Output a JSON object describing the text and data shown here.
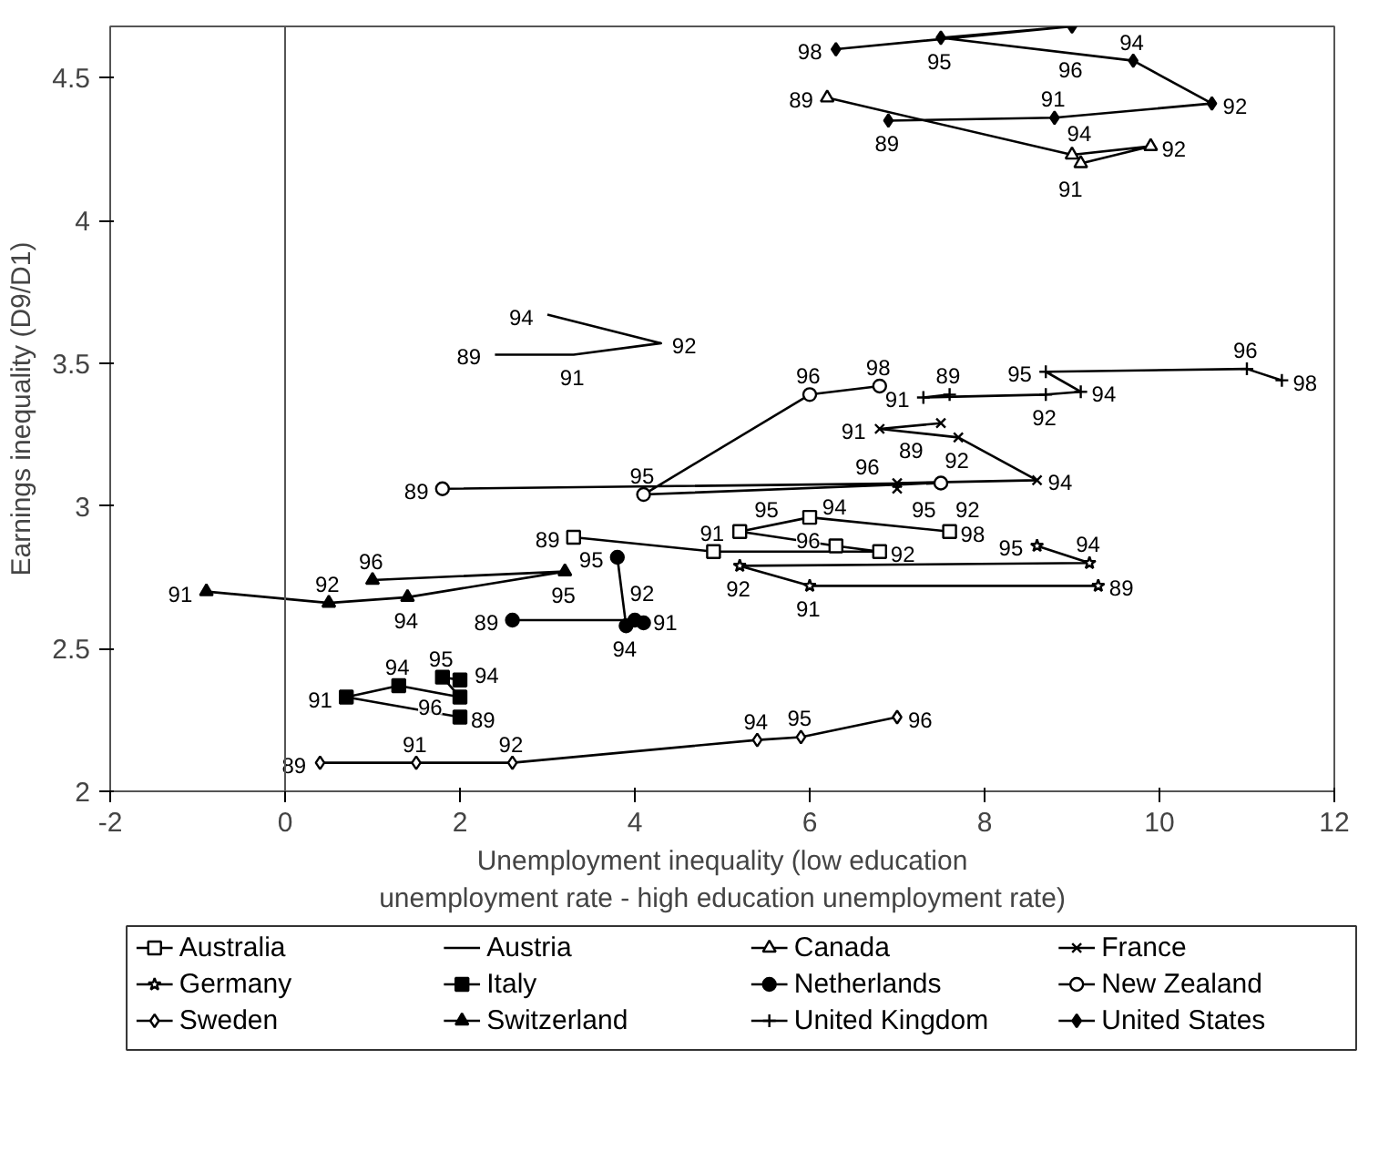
{
  "chart_data": {
    "type": "line",
    "xlabel": "Unemployment inequality (low education\nunemployment rate - high education unemployment rate)",
    "ylabel": "Earnings inequality (D9/D1)",
    "xlim": [
      -2,
      12
    ],
    "ylim": [
      2,
      4.68
    ],
    "xticks": [
      -2,
      0,
      2,
      4,
      6,
      8,
      10,
      12
    ],
    "yticks": [
      2,
      2.5,
      3,
      3.5,
      4,
      4.5
    ],
    "grid": false,
    "legend": "bottom",
    "ref_lines": [
      {
        "axis": "x",
        "value": 0,
        "label": null
      }
    ],
    "series": [
      {
        "name": "Australia",
        "color": "#000000",
        "marker": "square",
        "x": [
          3.3,
          4.9,
          6.8,
          6.3,
          5.2,
          6.0,
          7.6
        ],
        "values": [
          2.89,
          2.84,
          2.84,
          2.86,
          2.91,
          2.96,
          2.91
        ]
      },
      {
        "name": "Austria",
        "color": "#000000",
        "marker": "none",
        "x": [
          2.4,
          3.3,
          4.3,
          3.0
        ],
        "values": [
          3.53,
          3.53,
          3.57,
          3.67
        ]
      },
      {
        "name": "Canada",
        "color": "#000000",
        "marker": "triangle",
        "x": [
          6.2,
          9.0,
          9.9,
          9.1
        ],
        "values": [
          4.43,
          4.23,
          4.26,
          4.2
        ]
      },
      {
        "name": "France",
        "color": "#000000",
        "marker": "x",
        "x": [
          7.5,
          6.8,
          7.7,
          8.6,
          7.0,
          7.0
        ],
        "values": [
          3.29,
          3.27,
          3.24,
          3.09,
          3.08,
          3.06
        ]
      },
      {
        "name": "Germany",
        "color": "#000000",
        "marker": "star",
        "x": [
          9.3,
          6.0,
          5.2,
          9.2,
          8.6
        ],
        "values": [
          2.72,
          2.72,
          2.79,
          2.8,
          2.86
        ]
      },
      {
        "name": "Italy",
        "color": "#000000",
        "marker": "square_filled",
        "x": [
          2.0,
          0.7,
          1.3,
          2.0,
          1.8,
          2.0
        ],
        "values": [
          2.26,
          2.33,
          2.37,
          2.33,
          2.4,
          2.39
        ]
      },
      {
        "name": "Netherlands",
        "color": "#000000",
        "marker": "circle_filled",
        "x": [
          2.6,
          4.0,
          4.1,
          3.9,
          3.8
        ],
        "values": [
          2.6,
          2.6,
          2.59,
          2.58,
          2.82
        ]
      },
      {
        "name": "New Zealand",
        "color": "#000000",
        "marker": "circle",
        "x": [
          1.8,
          7.5,
          4.1,
          6.0,
          6.8
        ],
        "values": [
          3.06,
          3.08,
          3.04,
          3.39,
          3.42
        ]
      },
      {
        "name": "Sweden",
        "color": "#000000",
        "marker": "diamond",
        "x": [
          0.4,
          1.5,
          2.6,
          5.4,
          5.9,
          7.0
        ],
        "values": [
          2.1,
          2.1,
          2.1,
          2.18,
          2.19,
          2.26
        ]
      },
      {
        "name": "Switzerland",
        "color": "#000000",
        "marker": "triangle_filled",
        "x": [
          -0.9,
          0.5,
          1.4,
          3.2,
          1.0
        ],
        "values": [
          2.7,
          2.66,
          2.68,
          2.77,
          2.74
        ]
      },
      {
        "name": "United Kingdom",
        "color": "#000000",
        "marker": "cross",
        "x": [
          7.6,
          7.3,
          8.7,
          9.1,
          8.7,
          11.0,
          11.4
        ],
        "values": [
          3.39,
          3.38,
          3.39,
          3.4,
          3.47,
          3.48,
          3.44
        ]
      },
      {
        "name": "United States",
        "color": "#000000",
        "marker": "diamond_filled",
        "x": [
          6.9,
          8.8,
          10.6,
          9.7,
          7.5,
          9.0,
          6.3
        ],
        "values": [
          4.35,
          4.36,
          4.41,
          4.56,
          4.64,
          4.68,
          4.6
        ]
      }
    ],
    "annotations": [
      {
        "text": "89",
        "x": 3.3,
        "y": 2.89
      },
      {
        "text": "91",
        "x": 4.9,
        "y": 2.84
      },
      {
        "text": "92",
        "x": 6.8,
        "y": 2.84
      },
      {
        "text": "94",
        "x": 6.3,
        "y": 2.86
      },
      {
        "text": "95",
        "x": 5.2,
        "y": 2.91
      },
      {
        "text": "96",
        "x": 6.0,
        "y": 2.96
      },
      {
        "text": "98",
        "x": 7.6,
        "y": 2.91
      },
      {
        "text": "89",
        "x": 2.4,
        "y": 3.53
      },
      {
        "text": "91",
        "x": 3.3,
        "y": 3.53
      },
      {
        "text": "92",
        "x": 4.3,
        "y": 3.57
      },
      {
        "text": "94",
        "x": 3.0,
        "y": 3.67
      },
      {
        "text": "89",
        "x": 6.2,
        "y": 4.43
      },
      {
        "text": "91",
        "x": 9.0,
        "y": 4.23
      },
      {
        "text": "92",
        "x": 9.9,
        "y": 4.26
      },
      {
        "text": "94",
        "x": 9.1,
        "y": 4.2
      },
      {
        "text": "89",
        "x": 7.5,
        "y": 3.29
      },
      {
        "text": "91",
        "x": 6.8,
        "y": 3.27
      },
      {
        "text": "92",
        "x": 7.7,
        "y": 3.24
      },
      {
        "text": "94",
        "x": 8.6,
        "y": 3.09
      },
      {
        "text": "95",
        "x": 7.0,
        "y": 3.08
      },
      {
        "text": "96",
        "x": 7.0,
        "y": 3.06
      },
      {
        "text": "89",
        "x": 9.3,
        "y": 2.72
      },
      {
        "text": "91",
        "x": 6.0,
        "y": 2.72
      },
      {
        "text": "92",
        "x": 5.2,
        "y": 2.79
      },
      {
        "text": "94",
        "x": 9.2,
        "y": 2.8
      },
      {
        "text": "95",
        "x": 8.6,
        "y": 2.86
      },
      {
        "text": "89",
        "x": 2.0,
        "y": 2.26
      },
      {
        "text": "91",
        "x": 0.7,
        "y": 2.33
      },
      {
        "text": "94",
        "x": 1.3,
        "y": 2.37
      },
      {
        "text": "94",
        "x": 2.0,
        "y": 2.33
      },
      {
        "text": "95",
        "x": 1.8,
        "y": 2.4
      },
      {
        "text": "96",
        "x": 2.0,
        "y": 2.39
      },
      {
        "text": "89",
        "x": 2.6,
        "y": 2.6
      },
      {
        "text": "91",
        "x": 4.0,
        "y": 2.6
      },
      {
        "text": "92",
        "x": 4.1,
        "y": 2.59
      },
      {
        "text": "94",
        "x": 3.9,
        "y": 2.58
      },
      {
        "text": "95",
        "x": 3.8,
        "y": 2.82
      },
      {
        "text": "89",
        "x": 1.8,
        "y": 3.06
      },
      {
        "text": "92",
        "x": 7.5,
        "y": 3.08
      },
      {
        "text": "95",
        "x": 4.1,
        "y": 3.04
      },
      {
        "text": "96",
        "x": 6.0,
        "y": 3.39
      },
      {
        "text": "98",
        "x": 6.8,
        "y": 3.42
      },
      {
        "text": "89",
        "x": 0.4,
        "y": 2.1
      },
      {
        "text": "91",
        "x": 1.5,
        "y": 2.1
      },
      {
        "text": "92",
        "x": 2.6,
        "y": 2.1
      },
      {
        "text": "94",
        "x": 5.4,
        "y": 2.18
      },
      {
        "text": "95",
        "x": 5.9,
        "y": 2.19
      },
      {
        "text": "96",
        "x": 7.0,
        "y": 2.26
      },
      {
        "text": "91",
        "x": -0.9,
        "y": 2.7
      },
      {
        "text": "92",
        "x": 0.5,
        "y": 2.66
      },
      {
        "text": "94",
        "x": 1.4,
        "y": 2.68
      },
      {
        "text": "95",
        "x": 3.2,
        "y": 2.77
      },
      {
        "text": "96",
        "x": 1.0,
        "y": 2.74
      },
      {
        "text": "89",
        "x": 7.6,
        "y": 3.39
      },
      {
        "text": "91",
        "x": 7.3,
        "y": 3.38
      },
      {
        "text": "92",
        "x": 8.7,
        "y": 3.39
      },
      {
        "text": "94",
        "x": 9.1,
        "y": 3.4
      },
      {
        "text": "95",
        "x": 8.7,
        "y": 3.47
      },
      {
        "text": "96",
        "x": 11.0,
        "y": 3.48
      },
      {
        "text": "98",
        "x": 11.4,
        "y": 3.44
      },
      {
        "text": "89",
        "x": 6.9,
        "y": 4.35
      },
      {
        "text": "91",
        "x": 8.8,
        "y": 4.36
      },
      {
        "text": "92",
        "x": 10.6,
        "y": 4.41
      },
      {
        "text": "94",
        "x": 9.7,
        "y": 4.56
      },
      {
        "text": "95",
        "x": 7.5,
        "y": 4.64
      },
      {
        "text": "96",
        "x": 9.0,
        "y": 4.68
      },
      {
        "text": "98",
        "x": 6.3,
        "y": 4.6
      }
    ]
  }
}
